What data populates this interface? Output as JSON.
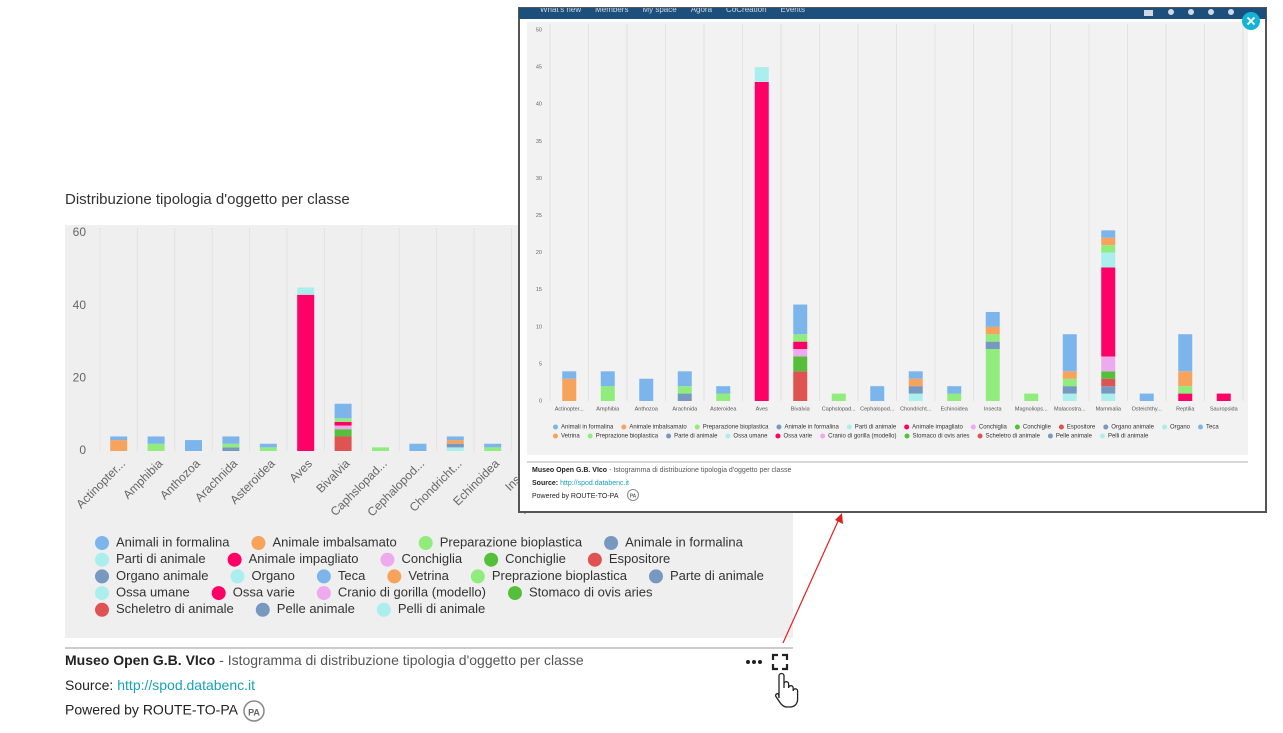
{
  "nav": {
    "items": [
      "What's new",
      "Members",
      "My space",
      "Agora",
      "CoCreation",
      "Events"
    ]
  },
  "chart_data": [
    {
      "type": "bar",
      "stacked": true,
      "title": "Distribuzione tipologia d'oggetto per classe",
      "categories": [
        "Actinopter...",
        "Amphibia",
        "Anthozoa",
        "Arachnida",
        "Asteroidea",
        "Aves",
        "Bivalvia",
        "Caphslopad...",
        "Cephalopod...",
        "Chondricht...",
        "Echinoidea",
        "Insecta",
        "Magnoliops...",
        "Malacostra...",
        "Mammalia",
        "Osteichthy...",
        "Reptilia",
        "Sauropsida"
      ],
      "series": [
        {
          "name": "Animali in formalina",
          "color": "#7cb5ec",
          "values": [
            1,
            2,
            3,
            2,
            1,
            0,
            4,
            0,
            2,
            1,
            1,
            2,
            0,
            5,
            1,
            1,
            5,
            0
          ]
        },
        {
          "name": "Animale imbalsamato",
          "color": "#f7a35c",
          "values": [
            3,
            0,
            0,
            0,
            0,
            0,
            0,
            0,
            0,
            1,
            0,
            1,
            0,
            1,
            1,
            0,
            2,
            0
          ]
        },
        {
          "name": "Preparazione bioplastica",
          "color": "#90ed7d",
          "values": [
            0,
            2,
            0,
            1,
            1,
            0,
            1,
            1,
            0,
            0,
            1,
            1,
            1,
            1,
            1,
            0,
            1,
            0
          ]
        },
        {
          "name": "Animale in formalina",
          "color": "#7798bf",
          "values": [
            0,
            0,
            0,
            1,
            0,
            0,
            0,
            0,
            0,
            1,
            0,
            1,
            0,
            1,
            0,
            0,
            0,
            0
          ]
        },
        {
          "name": "Parti di animale",
          "color": "#aaeeee",
          "values": [
            0,
            0,
            0,
            0,
            0,
            2,
            0,
            0,
            0,
            1,
            0,
            0,
            0,
            1,
            2,
            0,
            0,
            0
          ]
        },
        {
          "name": "Animale impagliato",
          "color": "#ff0066",
          "values": [
            0,
            0,
            0,
            0,
            0,
            43,
            1,
            0,
            0,
            0,
            0,
            0,
            0,
            0,
            12,
            0,
            1,
            1
          ]
        },
        {
          "name": "Conchiglia",
          "color": "#eeaaee",
          "values": [
            0,
            0,
            0,
            0,
            0,
            0,
            1,
            0,
            0,
            0,
            0,
            0,
            0,
            0,
            2,
            0,
            0,
            0
          ]
        },
        {
          "name": "Conchiglie",
          "color": "#55bf3b",
          "values": [
            0,
            0,
            0,
            0,
            0,
            0,
            2,
            0,
            0,
            0,
            0,
            0,
            0,
            0,
            1,
            0,
            0,
            0
          ]
        },
        {
          "name": "Espositore",
          "color": "#df5353",
          "values": [
            0,
            0,
            0,
            0,
            0,
            0,
            4,
            0,
            0,
            0,
            0,
            0,
            0,
            0,
            1,
            0,
            0,
            0
          ]
        },
        {
          "name": "Organo animale",
          "color": "#7798bf",
          "values": [
            0,
            0,
            0,
            0,
            0,
            0,
            0,
            0,
            0,
            0,
            0,
            0,
            0,
            0,
            1,
            0,
            0,
            0
          ]
        },
        {
          "name": "Organo",
          "color": "#aaeeee",
          "values": [
            0,
            0,
            0,
            0,
            0,
            0,
            0,
            0,
            0,
            0,
            0,
            0,
            0,
            0,
            1,
            0,
            0,
            0
          ]
        },
        {
          "name": "Teca",
          "color": "#7cb5ec",
          "values": [
            0,
            0,
            0,
            0,
            0,
            0,
            0,
            0,
            0,
            0,
            0,
            0,
            0,
            0,
            0,
            0,
            0,
            0
          ]
        },
        {
          "name": "Vetrina",
          "color": "#f7a35c",
          "values": [
            0,
            0,
            0,
            0,
            0,
            0,
            0,
            0,
            0,
            0,
            0,
            0,
            0,
            0,
            0,
            0,
            0,
            0
          ]
        },
        {
          "name": "Preprazione bioplastica",
          "color": "#90ed7d",
          "values": [
            0,
            0,
            0,
            0,
            0,
            0,
            0,
            0,
            0,
            0,
            0,
            7,
            0,
            0,
            0,
            0,
            0,
            0
          ]
        },
        {
          "name": "Parte di animale",
          "color": "#7798bf",
          "values": [
            0,
            0,
            0,
            0,
            0,
            0,
            0,
            0,
            0,
            0,
            0,
            0,
            0,
            0,
            0,
            0,
            0,
            0
          ]
        },
        {
          "name": "Ossa umane",
          "color": "#aaeeee",
          "values": [
            0,
            0,
            0,
            0,
            0,
            0,
            0,
            0,
            0,
            0,
            0,
            0,
            0,
            0,
            0,
            0,
            0,
            0
          ]
        },
        {
          "name": "Ossa varie",
          "color": "#ff0066",
          "values": [
            0,
            0,
            0,
            0,
            0,
            0,
            0,
            0,
            0,
            0,
            0,
            0,
            0,
            0,
            0,
            0,
            0,
            0
          ]
        },
        {
          "name": "Cranio di gorilla (modello)",
          "color": "#eeaaee",
          "values": [
            0,
            0,
            0,
            0,
            0,
            0,
            0,
            0,
            0,
            0,
            0,
            0,
            0,
            0,
            0,
            0,
            0,
            0
          ]
        },
        {
          "name": "Stomaco di ovis aries",
          "color": "#55bf3b",
          "values": [
            0,
            0,
            0,
            0,
            0,
            0,
            0,
            0,
            0,
            0,
            0,
            0,
            0,
            0,
            0,
            0,
            0,
            0
          ]
        },
        {
          "name": "Scheletro di animale",
          "color": "#df5353",
          "values": [
            0,
            0,
            0,
            0,
            0,
            0,
            0,
            0,
            0,
            0,
            0,
            0,
            0,
            0,
            0,
            0,
            0,
            0
          ]
        },
        {
          "name": "Pelle animale",
          "color": "#7798bf",
          "values": [
            0,
            0,
            0,
            0,
            0,
            0,
            0,
            0,
            0,
            0,
            0,
            0,
            0,
            0,
            0,
            0,
            0,
            0
          ]
        },
        {
          "name": "Pelli di animale",
          "color": "#aaeeee",
          "values": [
            0,
            0,
            0,
            0,
            0,
            0,
            0,
            0,
            0,
            0,
            0,
            0,
            0,
            0,
            0,
            0,
            0,
            0
          ]
        }
      ],
      "ylim": [
        0,
        60
      ],
      "yticks": [
        0,
        20,
        40,
        60
      ],
      "grid": false,
      "legend": "bottom"
    },
    {
      "type": "bar",
      "stacked": true,
      "ylim": [
        0,
        50
      ],
      "yticks": [
        0,
        5,
        10,
        15,
        20,
        25,
        30,
        35,
        40,
        45,
        50
      ],
      "grid": false,
      "legend": "bottom"
    }
  ],
  "footer": {
    "source_name": "Museo Open G.B. VIco",
    "description": "- Istogramma di distribuzione tipologia d'oggetto per classe",
    "source_label": "Source:",
    "source_url": "http://spod.databenc.it",
    "powered_by": "Powered by ROUTE-TO-PA",
    "badge": "PA"
  }
}
